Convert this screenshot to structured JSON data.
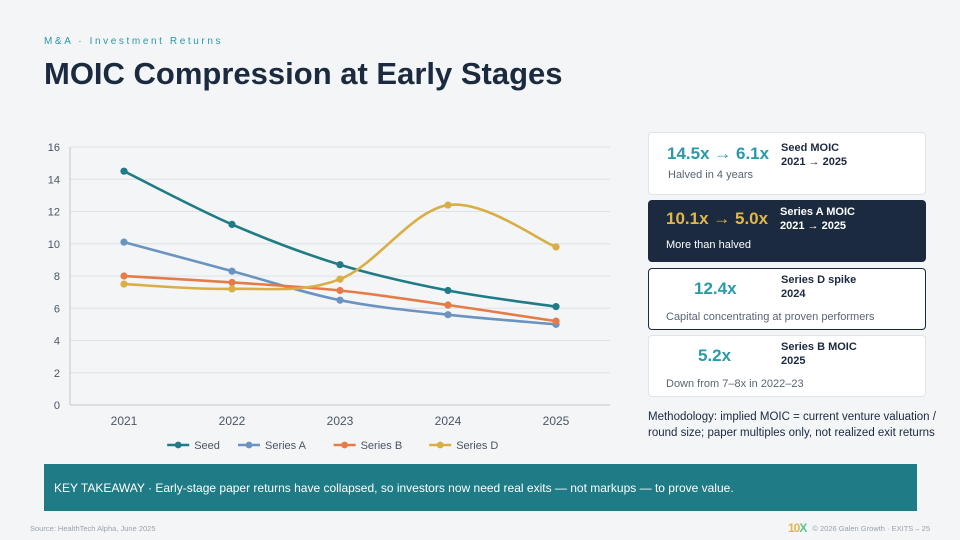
{
  "header": {
    "eyebrow": "M&A · Investment Returns",
    "title": "MOIC Compression at Early Stages"
  },
  "chart_data": {
    "type": "line",
    "title": "",
    "xlabel": "",
    "ylabel": "",
    "x": [
      "2021",
      "2022",
      "2023",
      "2024",
      "2025"
    ],
    "ylim": [
      0,
      16
    ],
    "yticks": [
      0,
      2,
      4,
      6,
      8,
      10,
      12,
      14,
      16
    ],
    "grid": true,
    "legend": "bottom",
    "series": [
      {
        "name": "Seed",
        "values": [
          14.5,
          11.2,
          8.7,
          7.1,
          6.1
        ],
        "color": "#1f7b86"
      },
      {
        "name": "Series A",
        "values": [
          10.1,
          8.3,
          6.5,
          5.6,
          5.0
        ],
        "color": "#6a93bf"
      },
      {
        "name": "Series B",
        "values": [
          8.0,
          7.6,
          7.1,
          6.2,
          5.2
        ],
        "color": "#e57c48"
      },
      {
        "name": "Series D",
        "values": [
          7.5,
          7.2,
          7.8,
          12.4,
          9.8
        ],
        "color": "#d9ae45"
      }
    ]
  },
  "cards": [
    {
      "value": "14.5x → 6.1x",
      "label1": "Seed MOIC",
      "label2": "2021 → 2025",
      "sub": "Halved in 4 years"
    },
    {
      "value": "10.1x → 5.0x",
      "label1": "Series A MOIC",
      "label2": "2021 → 2025",
      "sub": "More than halved"
    },
    {
      "value": "12.4x",
      "label1": "Series D spike",
      "label2": "2024",
      "sub": "Capital concentrating at proven performers"
    },
    {
      "value": "5.2x",
      "label1": "Series B MOIC",
      "label2": "2025",
      "sub": "Down from 7–8x in 2022–23"
    }
  ],
  "methodology": "Methodology: implied MOIC = current venture valuation / round size; paper multiples only, not realized exit returns",
  "takeaway": "KEY TAKEAWAY · Early-stage paper returns have collapsed, so investors now need real exits — not markups — to prove value.",
  "footer": {
    "source": "Source: HealthTech Alpha, June 2025",
    "logo_a": "10",
    "logo_b": "X",
    "copyright": "© 2026 Galen Growth · EXITS – 25"
  },
  "colors": {
    "navy": "#1b2a3e",
    "teal": "#1f7b86",
    "accent_teal": "#2a9aa8",
    "gold": "#e3b649"
  }
}
